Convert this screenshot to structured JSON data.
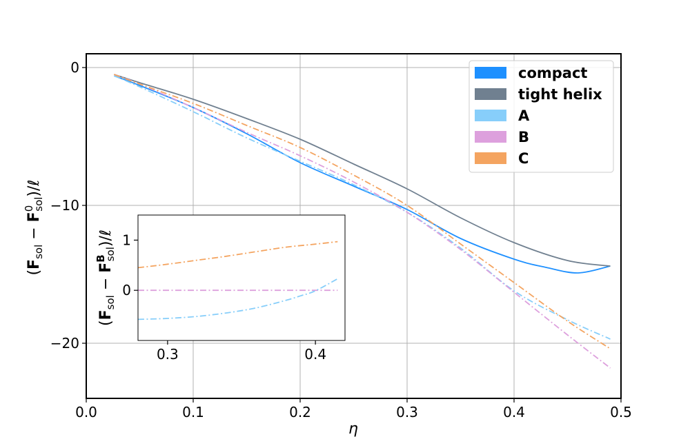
{
  "chart_data": [
    {
      "type": "line",
      "xlabel": "η",
      "ylabel": "(F_sol − F⁰_sol)/ℓ",
      "xlim": [
        0.0,
        0.5
      ],
      "ylim": [
        -24,
        1
      ],
      "xticks": [
        0.0,
        0.1,
        0.2,
        0.3,
        0.4,
        0.5
      ],
      "xtick_labels": [
        "0.0",
        "0.1",
        "0.2",
        "0.3",
        "0.4",
        "0.5"
      ],
      "yticks": [
        0,
        -10,
        -20
      ],
      "ytick_labels": [
        "0",
        "−10",
        "−20"
      ],
      "grid": true,
      "legend": "top-right",
      "series": [
        {
          "name": "compact",
          "style": "solid",
          "color": "#1e90ff",
          "x": [
            0.026,
            0.05,
            0.1,
            0.15,
            0.2,
            0.25,
            0.3,
            0.35,
            0.4,
            0.43,
            0.46,
            0.49
          ],
          "y": [
            -0.6,
            -1.3,
            -2.9,
            -4.8,
            -6.9,
            -8.6,
            -10.3,
            -12.4,
            -13.9,
            -14.5,
            -14.9,
            -14.4
          ]
        },
        {
          "name": "tight helix",
          "style": "solid",
          "color": "#708090",
          "x": [
            0.026,
            0.05,
            0.1,
            0.15,
            0.2,
            0.25,
            0.3,
            0.35,
            0.4,
            0.45,
            0.49
          ],
          "y": [
            -0.5,
            -1.1,
            -2.3,
            -3.7,
            -5.2,
            -7.0,
            -8.8,
            -10.9,
            -12.7,
            -14.0,
            -14.4
          ]
        },
        {
          "name": "A",
          "style": "dashdot",
          "color": "#87cefa",
          "x": [
            0.026,
            0.05,
            0.1,
            0.15,
            0.2,
            0.25,
            0.3,
            0.35,
            0.4,
            0.45,
            0.49
          ],
          "y": [
            -0.6,
            -1.4,
            -3.2,
            -5.1,
            -6.8,
            -8.5,
            -10.5,
            -13.1,
            -16.2,
            -18.3,
            -19.7
          ]
        },
        {
          "name": "B",
          "style": "dashdot",
          "color": "#dda0dd",
          "x": [
            0.026,
            0.05,
            0.1,
            0.15,
            0.2,
            0.25,
            0.3,
            0.35,
            0.4,
            0.45,
            0.49
          ],
          "y": [
            -0.5,
            -1.2,
            -2.9,
            -4.7,
            -6.4,
            -8.3,
            -10.5,
            -13.2,
            -16.3,
            -19.4,
            -21.8
          ]
        },
        {
          "name": "C",
          "style": "dashdot",
          "color": "#f4a460",
          "x": [
            0.026,
            0.05,
            0.1,
            0.15,
            0.2,
            0.25,
            0.3,
            0.35,
            0.4,
            0.45,
            0.49
          ],
          "y": [
            -0.5,
            -1.2,
            -2.6,
            -4.2,
            -5.8,
            -7.8,
            -10.0,
            -12.8,
            -15.6,
            -18.4,
            -20.4
          ]
        }
      ]
    },
    {
      "type": "line",
      "inset": true,
      "ylabel": "(F_sol − F^B_sol)/ℓ",
      "xlim": [
        0.28,
        0.42
      ],
      "ylim": [
        -1.0,
        1.5
      ],
      "xticks": [
        0.3,
        0.4
      ],
      "xtick_labels": [
        "0.3",
        "0.4"
      ],
      "yticks": [
        1,
        0
      ],
      "ytick_labels": [
        "1",
        "0"
      ],
      "grid": false,
      "series": [
        {
          "name": "C",
          "style": "dashdot",
          "color": "#f4a460",
          "x": [
            0.28,
            0.3,
            0.32,
            0.34,
            0.36,
            0.38,
            0.4,
            0.415
          ],
          "y": [
            0.45,
            0.52,
            0.6,
            0.68,
            0.77,
            0.86,
            0.92,
            0.97
          ]
        },
        {
          "name": "B",
          "style": "dashdot",
          "color": "#dda0dd",
          "x": [
            0.28,
            0.415
          ],
          "y": [
            0.0,
            0.0
          ]
        },
        {
          "name": "A",
          "style": "dashdot",
          "color": "#87cefa",
          "x": [
            0.28,
            0.3,
            0.32,
            0.34,
            0.36,
            0.38,
            0.39,
            0.4,
            0.415
          ],
          "y": [
            -0.58,
            -0.56,
            -0.52,
            -0.45,
            -0.35,
            -0.2,
            -0.11,
            -0.01,
            0.23
          ]
        }
      ]
    }
  ]
}
